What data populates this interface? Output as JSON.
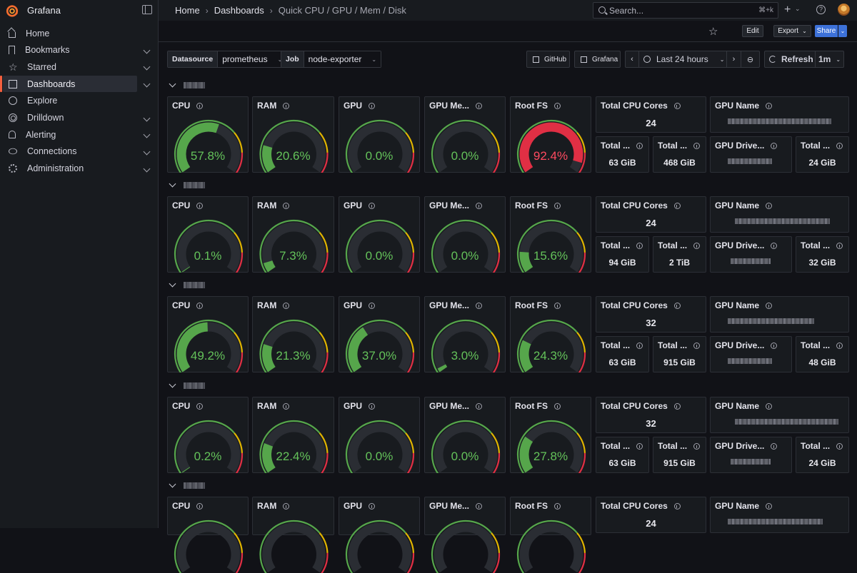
{
  "app": {
    "name": "Grafana"
  },
  "breadcrumb": [
    "Home",
    "Dashboards",
    "Quick CPU / GPU / Mem / Disk"
  ],
  "search": {
    "placeholder": "Search...",
    "shortcut": "⌘+k"
  },
  "nav": [
    {
      "label": "Home",
      "icon": "home-icon",
      "caret": false,
      "active": false
    },
    {
      "label": "Bookmarks",
      "icon": "bookmark-icon",
      "caret": true,
      "active": false
    },
    {
      "label": "Starred",
      "icon": "star-icon",
      "caret": true,
      "active": false
    },
    {
      "label": "Dashboards",
      "icon": "apps-icon",
      "caret": true,
      "active": true
    },
    {
      "label": "Explore",
      "icon": "compass-icon",
      "caret": false,
      "active": false
    },
    {
      "label": "Drilldown",
      "icon": "drilldown-icon",
      "caret": true,
      "active": false
    },
    {
      "label": "Alerting",
      "icon": "bell-icon",
      "caret": true,
      "active": false
    },
    {
      "label": "Connections",
      "icon": "connections-icon",
      "caret": true,
      "active": false
    },
    {
      "label": "Administration",
      "icon": "gear-icon",
      "caret": true,
      "active": false
    }
  ],
  "toolbar": {
    "edit": "Edit",
    "export": "Export",
    "share": "Share"
  },
  "variables": [
    {
      "label": "Datasource",
      "value": "prometheus"
    },
    {
      "label": "Job",
      "value": "node-exporter"
    }
  ],
  "links": {
    "github": "GitHub",
    "grafana": "Grafana"
  },
  "time": {
    "range": "Last 24 hours",
    "refresh_label": "Refresh",
    "interval": "1m"
  },
  "colors": {
    "accent": "#f55f3e",
    "green": "#56a64b",
    "red": "#e02f44",
    "share": "#3d71d9"
  },
  "panel_titles": {
    "cpu": "CPU",
    "ram": "RAM",
    "gpu": "GPU",
    "gpu_mem": "GPU Me...",
    "rootfs": "Root FS",
    "cores": "Total CPU Cores",
    "gpu_name": "GPU Name",
    "total_a": "Total ...",
    "total_b": "Total ...",
    "gpu_driver": "GPU Drive...",
    "total_c": "Total ..."
  },
  "hosts": [
    {
      "cpu": 57.8,
      "ram": 20.6,
      "gpu": 0.0,
      "gpu_mem": 0.0,
      "rootfs": 92.4,
      "cpu_text": "57.8%",
      "ram_text": "20.6%",
      "gpu_text": "0.0%",
      "gpu_mem_text": "0.0%",
      "rootfs_text": "92.4%",
      "cores": "24",
      "stat_a": "63 GiB",
      "stat_b": "468 GiB",
      "stat_c": "24 GiB"
    },
    {
      "cpu": 0.1,
      "ram": 7.3,
      "gpu": 0.0,
      "gpu_mem": 0.0,
      "rootfs": 15.6,
      "cpu_text": "0.1%",
      "ram_text": "7.3%",
      "gpu_text": "0.0%",
      "gpu_mem_text": "0.0%",
      "rootfs_text": "15.6%",
      "cores": "24",
      "stat_a": "94 GiB",
      "stat_b": "2 TiB",
      "stat_c": "32 GiB"
    },
    {
      "cpu": 49.2,
      "ram": 21.3,
      "gpu": 37.0,
      "gpu_mem": 3.0,
      "rootfs": 24.3,
      "cpu_text": "49.2%",
      "ram_text": "21.3%",
      "gpu_text": "37.0%",
      "gpu_mem_text": "3.0%",
      "rootfs_text": "24.3%",
      "cores": "32",
      "stat_a": "63 GiB",
      "stat_b": "915 GiB",
      "stat_c": "48 GiB"
    },
    {
      "cpu": 0.2,
      "ram": 22.4,
      "gpu": 0.0,
      "gpu_mem": 0.0,
      "rootfs": 27.8,
      "cpu_text": "0.2%",
      "ram_text": "22.4%",
      "gpu_text": "0.0%",
      "gpu_mem_text": "0.0%",
      "rootfs_text": "27.8%",
      "cores": "32",
      "stat_a": "63 GiB",
      "stat_b": "915 GiB",
      "stat_c": "24 GiB"
    },
    {
      "cpu": null,
      "ram": null,
      "gpu": null,
      "gpu_mem": null,
      "rootfs": null,
      "cpu_text": "",
      "ram_text": "",
      "gpu_text": "",
      "gpu_mem_text": "",
      "rootfs_text": "",
      "cores": "24",
      "stat_a": "",
      "stat_b": "",
      "stat_c": ""
    }
  ]
}
